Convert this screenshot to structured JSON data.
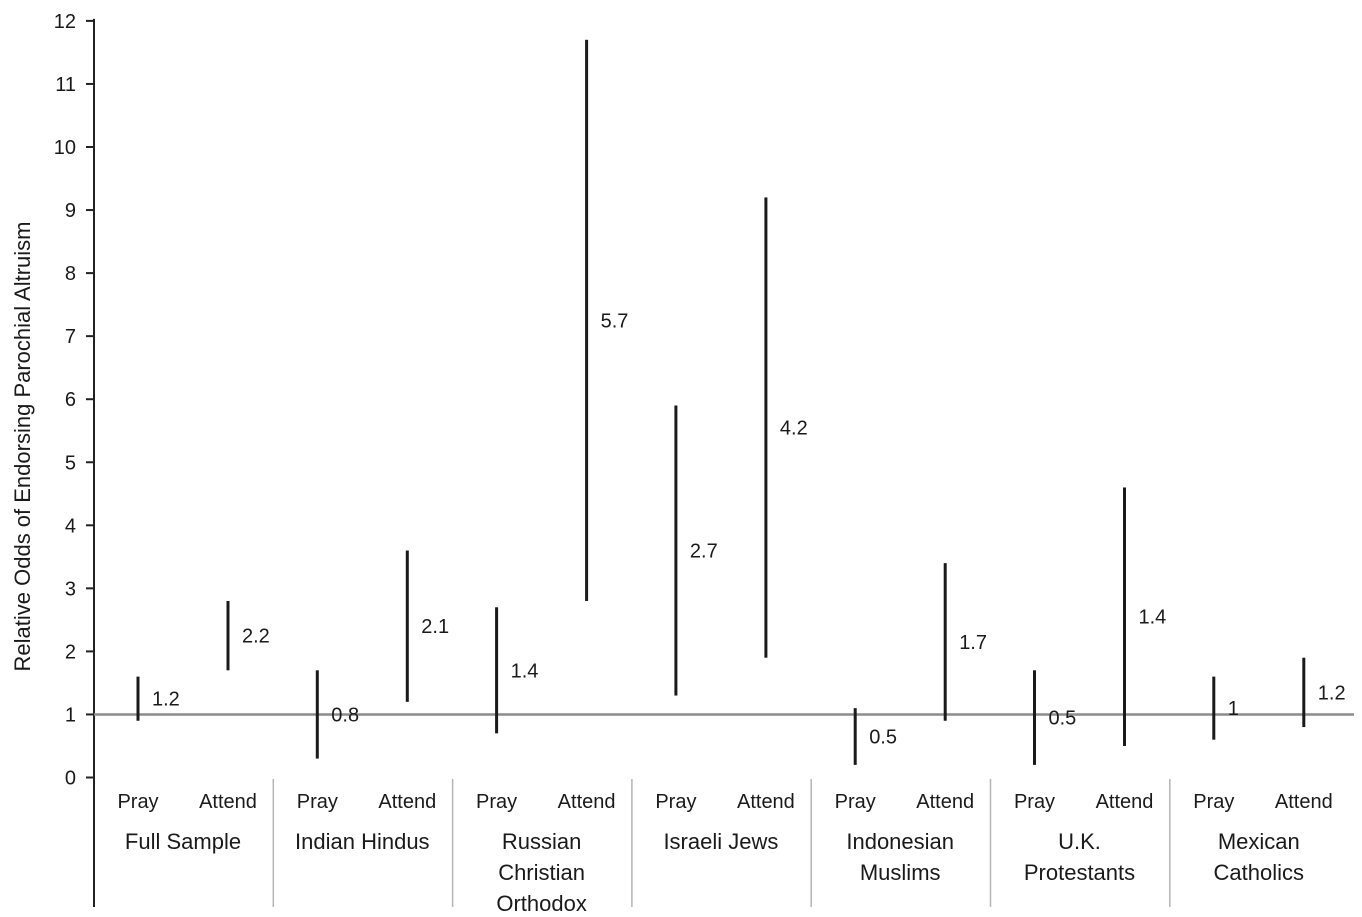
{
  "chart_data": {
    "type": "range",
    "title": "",
    "ylabel": "Relative Odds of Endorsing Parochial Altruism",
    "xlabel": "",
    "ylim": [
      0,
      12
    ],
    "yticks": [
      0,
      1,
      2,
      3,
      4,
      5,
      6,
      7,
      8,
      9,
      10,
      11,
      12
    ],
    "reference_line": 1,
    "grid": false,
    "legend": "none",
    "groups": [
      {
        "label": [
          "Full Sample"
        ],
        "items": [
          {
            "label": "Pray",
            "value": "1.2",
            "low": 0.9,
            "high": 1.6
          },
          {
            "label": "Attend",
            "value": "2.2",
            "low": 1.7,
            "high": 2.8
          }
        ]
      },
      {
        "label": [
          "Indian Hindus"
        ],
        "items": [
          {
            "label": "Pray",
            "value": "0.8",
            "low": 0.3,
            "high": 1.7
          },
          {
            "label": "Attend",
            "value": "2.1",
            "low": 1.2,
            "high": 3.6
          }
        ]
      },
      {
        "label": [
          "Russian",
          "Christian",
          "Orthodox"
        ],
        "items": [
          {
            "label": "Pray",
            "value": "1.4",
            "low": 0.7,
            "high": 2.7
          },
          {
            "label": "Attend",
            "value": "5.7",
            "low": 2.8,
            "high": 11.7
          }
        ]
      },
      {
        "label": [
          "Israeli Jews"
        ],
        "items": [
          {
            "label": "Pray",
            "value": "2.7",
            "low": 1.3,
            "high": 5.9
          },
          {
            "label": "Attend",
            "value": "4.2",
            "low": 1.9,
            "high": 9.2
          }
        ]
      },
      {
        "label": [
          "Indonesian",
          "Muslims"
        ],
        "items": [
          {
            "label": "Pray",
            "value": "0.5",
            "low": 0.2,
            "high": 1.1
          },
          {
            "label": "Attend",
            "value": "1.7",
            "low": 0.9,
            "high": 3.4
          }
        ]
      },
      {
        "label": [
          "U.K.",
          "Protestants"
        ],
        "items": [
          {
            "label": "Pray",
            "value": "0.5",
            "low": 0.2,
            "high": 1.7
          },
          {
            "label": "Attend",
            "value": "1.4",
            "low": 0.5,
            "high": 4.6
          }
        ]
      },
      {
        "label": [
          "Mexican",
          "Catholics"
        ],
        "items": [
          {
            "label": "Pray",
            "value": "1",
            "low": 0.6,
            "high": 1.6
          },
          {
            "label": "Attend",
            "value": "1.2",
            "low": 0.8,
            "high": 1.9
          }
        ]
      }
    ]
  }
}
